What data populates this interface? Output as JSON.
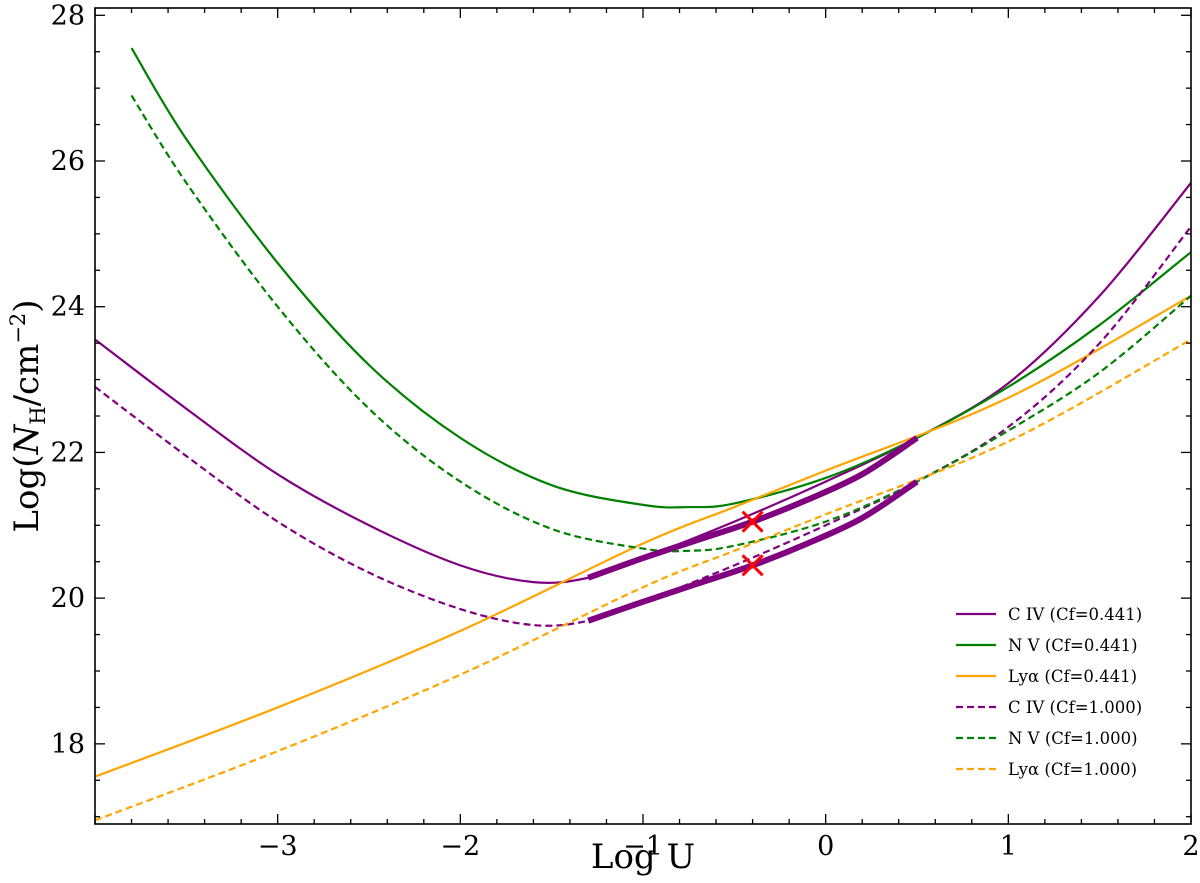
{
  "chart_data": {
    "type": "line",
    "title": "",
    "xlabel": "Log U",
    "ylabel_main": "Log(",
    "ylabel_var": "N",
    "ylabel_sub": "H",
    "ylabel_unit": "/cm",
    "ylabel_exp": "−2",
    "ylabel_close": ")",
    "xlim": [
      -4,
      2
    ],
    "ylim": [
      16.9,
      28.1
    ],
    "xticks": [
      {
        "value": -3,
        "label": "−3"
      },
      {
        "value": -2,
        "label": "−2"
      },
      {
        "value": -1,
        "label": "−1"
      },
      {
        "value": 0,
        "label": "0"
      },
      {
        "value": 1,
        "label": "1"
      },
      {
        "value": 2,
        "label": "2"
      }
    ],
    "yticks": [
      {
        "value": 18,
        "label": "18"
      },
      {
        "value": 20,
        "label": "20"
      },
      {
        "value": 22,
        "label": "22"
      },
      {
        "value": 24,
        "label": "24"
      },
      {
        "value": 26,
        "label": "26"
      },
      {
        "value": 28,
        "label": "28"
      }
    ],
    "grid": false,
    "legend_position": "bottom-right",
    "series": [
      {
        "name": "C IV (Cf=0.441)",
        "color": "#800080",
        "dash": "solid",
        "x": [
          -4.0,
          -3.5,
          -3.0,
          -2.5,
          -2.0,
          -1.6,
          -1.3,
          -1.0,
          -0.5,
          0.0,
          0.5,
          1.0,
          1.5,
          2.0
        ],
        "y": [
          23.55,
          22.6,
          21.7,
          21.0,
          20.45,
          20.22,
          20.28,
          20.55,
          21.05,
          21.6,
          22.2,
          22.95,
          24.15,
          25.7
        ]
      },
      {
        "name": "N V (Cf=0.441)",
        "color": "#008000",
        "dash": "solid",
        "x": [
          -3.8,
          -3.5,
          -3.0,
          -2.5,
          -2.0,
          -1.5,
          -1.0,
          -0.75,
          -0.5,
          0.0,
          0.5,
          1.0,
          1.5,
          2.0
        ],
        "y": [
          27.55,
          26.3,
          24.6,
          23.2,
          22.2,
          21.55,
          21.28,
          21.25,
          21.3,
          21.65,
          22.2,
          22.9,
          23.75,
          24.75
        ]
      },
      {
        "name": "Lyα (Cf=0.441)",
        "color": "#FFA500",
        "dash": "solid",
        "x": [
          -4.0,
          -3.0,
          -2.0,
          -1.0,
          -0.5,
          0.0,
          1.0,
          2.0
        ],
        "y": [
          17.55,
          18.5,
          19.55,
          20.75,
          21.25,
          21.75,
          22.75,
          24.15
        ]
      },
      {
        "name": "C IV (Cf=1.000)",
        "color": "#800080",
        "dash": "dashed",
        "x": [
          -4.0,
          -3.5,
          -3.0,
          -2.5,
          -2.0,
          -1.6,
          -1.3,
          -1.0,
          -0.5,
          0.0,
          0.5,
          1.0,
          1.5,
          2.0
        ],
        "y": [
          22.9,
          21.95,
          21.05,
          20.35,
          19.85,
          19.63,
          19.69,
          19.95,
          20.45,
          21.0,
          21.6,
          22.35,
          23.5,
          25.1
        ]
      },
      {
        "name": "N V (Cf=1.000)",
        "color": "#008000",
        "dash": "dashed",
        "x": [
          -3.8,
          -3.5,
          -3.0,
          -2.5,
          -2.0,
          -1.5,
          -1.0,
          -0.75,
          -0.5,
          0.0,
          0.5,
          1.0,
          1.5,
          2.0
        ],
        "y": [
          26.9,
          25.7,
          24.0,
          22.6,
          21.6,
          20.95,
          20.68,
          20.65,
          20.72,
          21.05,
          21.6,
          22.3,
          23.1,
          24.15
        ]
      },
      {
        "name": "Lyα (Cf=1.000)",
        "color": "#FFA500",
        "dash": "dashed",
        "x": [
          -4.0,
          -3.0,
          -2.0,
          -1.0,
          -0.5,
          0.0,
          1.0,
          2.0
        ],
        "y": [
          16.95,
          17.9,
          18.95,
          20.15,
          20.65,
          21.15,
          22.15,
          23.55
        ]
      }
    ],
    "highlights": [
      {
        "color": "#800080",
        "x": [
          -1.3,
          -1.0,
          -0.7,
          -0.4,
          -0.1,
          0.2,
          0.5
        ],
        "y": [
          20.28,
          20.55,
          20.8,
          21.05,
          21.35,
          21.7,
          22.2
        ]
      },
      {
        "color": "#800080",
        "x": [
          -1.3,
          -1.0,
          -0.7,
          -0.4,
          -0.1,
          0.2,
          0.5
        ],
        "y": [
          19.69,
          19.95,
          20.2,
          20.45,
          20.75,
          21.1,
          21.6
        ]
      }
    ],
    "markers": [
      {
        "x": -0.4,
        "y": 21.05,
        "color": "#FF0000",
        "symbol": "x"
      },
      {
        "x": -0.4,
        "y": 20.45,
        "color": "#FF0000",
        "symbol": "x"
      }
    ]
  }
}
